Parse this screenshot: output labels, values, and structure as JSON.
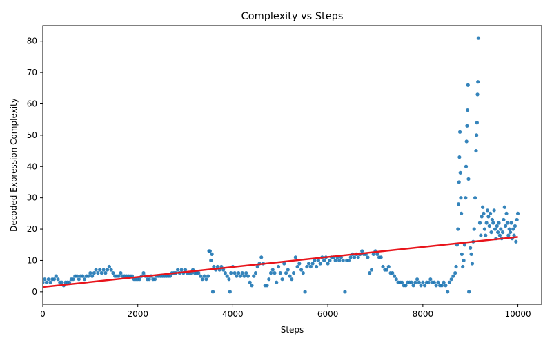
{
  "chart_data": {
    "type": "scatter",
    "title": "Complexity vs Steps",
    "xlabel": "Steps",
    "ylabel": "Decoded Expression Complexity",
    "xlim": [
      0,
      10500
    ],
    "ylim": [
      -4,
      85
    ],
    "xticks": [
      0,
      2000,
      4000,
      6000,
      8000,
      10000
    ],
    "yticks": [
      0,
      10,
      20,
      30,
      40,
      50,
      60,
      70,
      80
    ],
    "grid": false,
    "legend": "none",
    "colors": {
      "points": "#1f77b4",
      "trend": "#e8141b"
    },
    "trend_line": {
      "x": [
        0,
        10000
      ],
      "y": [
        1.5,
        17.5
      ]
    },
    "series": [
      {
        "values_xy": [
          [
            0,
            3
          ],
          [
            40,
            4
          ],
          [
            80,
            3
          ],
          [
            120,
            4
          ],
          [
            160,
            3
          ],
          [
            200,
            4
          ],
          [
            240,
            4
          ],
          [
            280,
            5
          ],
          [
            320,
            4
          ],
          [
            360,
            3
          ],
          [
            400,
            3
          ],
          [
            440,
            2
          ],
          [
            480,
            3
          ],
          [
            520,
            3
          ],
          [
            560,
            3
          ],
          [
            600,
            4
          ],
          [
            640,
            4
          ],
          [
            680,
            5
          ],
          [
            720,
            5
          ],
          [
            760,
            4
          ],
          [
            800,
            5
          ],
          [
            840,
            5
          ],
          [
            880,
            4
          ],
          [
            920,
            5
          ],
          [
            960,
            5
          ],
          [
            1000,
            6
          ],
          [
            1040,
            5
          ],
          [
            1080,
            6
          ],
          [
            1120,
            7
          ],
          [
            1160,
            6
          ],
          [
            1200,
            7
          ],
          [
            1240,
            6
          ],
          [
            1280,
            7
          ],
          [
            1320,
            6
          ],
          [
            1360,
            7
          ],
          [
            1400,
            8
          ],
          [
            1440,
            7
          ],
          [
            1480,
            6
          ],
          [
            1520,
            5
          ],
          [
            1560,
            5
          ],
          [
            1600,
            5
          ],
          [
            1640,
            6
          ],
          [
            1680,
            5
          ],
          [
            1720,
            5
          ],
          [
            1760,
            5
          ],
          [
            1800,
            5
          ],
          [
            1840,
            5
          ],
          [
            1880,
            5
          ],
          [
            1920,
            4
          ],
          [
            1960,
            4
          ],
          [
            2000,
            4
          ],
          [
            2040,
            4
          ],
          [
            2080,
            5
          ],
          [
            2120,
            6
          ],
          [
            2160,
            5
          ],
          [
            2200,
            4
          ],
          [
            2240,
            4
          ],
          [
            2280,
            5
          ],
          [
            2320,
            4
          ],
          [
            2360,
            4
          ],
          [
            2400,
            5
          ],
          [
            2440,
            5
          ],
          [
            2480,
            5
          ],
          [
            2520,
            5
          ],
          [
            2560,
            5
          ],
          [
            2600,
            5
          ],
          [
            2640,
            5
          ],
          [
            2680,
            5
          ],
          [
            2720,
            6
          ],
          [
            2760,
            6
          ],
          [
            2800,
            6
          ],
          [
            2840,
            7
          ],
          [
            2880,
            6
          ],
          [
            2920,
            7
          ],
          [
            2960,
            6
          ],
          [
            3000,
            7
          ],
          [
            3040,
            6
          ],
          [
            3080,
            6
          ],
          [
            3120,
            6
          ],
          [
            3160,
            7
          ],
          [
            3200,
            6
          ],
          [
            3240,
            6
          ],
          [
            3280,
            6
          ],
          [
            3320,
            5
          ],
          [
            3360,
            4
          ],
          [
            3400,
            5
          ],
          [
            3440,
            4
          ],
          [
            3480,
            5
          ],
          [
            3500,
            13
          ],
          [
            3520,
            13
          ],
          [
            3540,
            10
          ],
          [
            3560,
            12
          ],
          [
            3580,
            0
          ],
          [
            3600,
            8
          ],
          [
            3640,
            7
          ],
          [
            3680,
            8
          ],
          [
            3720,
            7
          ],
          [
            3760,
            8
          ],
          [
            3800,
            7
          ],
          [
            3840,
            6
          ],
          [
            3880,
            5
          ],
          [
            3920,
            4
          ],
          [
            3940,
            0
          ],
          [
            3960,
            6
          ],
          [
            4000,
            8
          ],
          [
            4040,
            6
          ],
          [
            4080,
            5
          ],
          [
            4120,
            6
          ],
          [
            4160,
            5
          ],
          [
            4200,
            6
          ],
          [
            4240,
            5
          ],
          [
            4280,
            6
          ],
          [
            4320,
            5
          ],
          [
            4360,
            3
          ],
          [
            4400,
            2
          ],
          [
            4440,
            5
          ],
          [
            4480,
            6
          ],
          [
            4520,
            8
          ],
          [
            4560,
            9
          ],
          [
            4600,
            11
          ],
          [
            4640,
            9
          ],
          [
            4680,
            2
          ],
          [
            4720,
            2
          ],
          [
            4760,
            4
          ],
          [
            4800,
            6
          ],
          [
            4840,
            7
          ],
          [
            4880,
            6
          ],
          [
            4920,
            3
          ],
          [
            4960,
            8
          ],
          [
            5000,
            6
          ],
          [
            5040,
            4
          ],
          [
            5080,
            9
          ],
          [
            5120,
            6
          ],
          [
            5160,
            7
          ],
          [
            5200,
            5
          ],
          [
            5240,
            4
          ],
          [
            5280,
            6
          ],
          [
            5320,
            11
          ],
          [
            5360,
            8
          ],
          [
            5400,
            9
          ],
          [
            5440,
            7
          ],
          [
            5480,
            6
          ],
          [
            5520,
            0
          ],
          [
            5560,
            8
          ],
          [
            5600,
            9
          ],
          [
            5640,
            8
          ],
          [
            5680,
            9
          ],
          [
            5720,
            10
          ],
          [
            5760,
            8
          ],
          [
            5800,
            10
          ],
          [
            5840,
            9
          ],
          [
            5880,
            11
          ],
          [
            5920,
            10
          ],
          [
            5960,
            11
          ],
          [
            6000,
            9
          ],
          [
            6040,
            10
          ],
          [
            6080,
            11
          ],
          [
            6120,
            11
          ],
          [
            6160,
            10
          ],
          [
            6200,
            11
          ],
          [
            6240,
            10
          ],
          [
            6280,
            11
          ],
          [
            6320,
            10
          ],
          [
            6360,
            0
          ],
          [
            6400,
            10
          ],
          [
            6440,
            10
          ],
          [
            6480,
            11
          ],
          [
            6520,
            12
          ],
          [
            6560,
            11
          ],
          [
            6600,
            12
          ],
          [
            6640,
            11
          ],
          [
            6680,
            12
          ],
          [
            6720,
            13
          ],
          [
            6760,
            12
          ],
          [
            6800,
            12
          ],
          [
            6840,
            11
          ],
          [
            6880,
            6
          ],
          [
            6920,
            7
          ],
          [
            6960,
            12
          ],
          [
            7000,
            13
          ],
          [
            7040,
            12
          ],
          [
            7080,
            11
          ],
          [
            7120,
            11
          ],
          [
            7160,
            8
          ],
          [
            7200,
            7
          ],
          [
            7240,
            7
          ],
          [
            7280,
            8
          ],
          [
            7320,
            6
          ],
          [
            7360,
            6
          ],
          [
            7400,
            5
          ],
          [
            7440,
            4
          ],
          [
            7480,
            3
          ],
          [
            7520,
            3
          ],
          [
            7560,
            3
          ],
          [
            7600,
            2
          ],
          [
            7640,
            2
          ],
          [
            7680,
            3
          ],
          [
            7720,
            3
          ],
          [
            7760,
            3
          ],
          [
            7800,
            2
          ],
          [
            7840,
            3
          ],
          [
            7880,
            4
          ],
          [
            7920,
            3
          ],
          [
            7960,
            2
          ],
          [
            8000,
            3
          ],
          [
            8040,
            2
          ],
          [
            8080,
            3
          ],
          [
            8120,
            3
          ],
          [
            8160,
            4
          ],
          [
            8200,
            3
          ],
          [
            8240,
            3
          ],
          [
            8280,
            2
          ],
          [
            8320,
            3
          ],
          [
            8360,
            2
          ],
          [
            8400,
            2
          ],
          [
            8440,
            3
          ],
          [
            8480,
            2
          ],
          [
            8520,
            0
          ],
          [
            8560,
            3
          ],
          [
            8600,
            4
          ],
          [
            8640,
            5
          ],
          [
            8680,
            6
          ],
          [
            8700,
            8
          ],
          [
            8720,
            15
          ],
          [
            8740,
            20
          ],
          [
            8750,
            28
          ],
          [
            8760,
            35
          ],
          [
            8770,
            43
          ],
          [
            8780,
            51
          ],
          [
            8790,
            38
          ],
          [
            8800,
            30
          ],
          [
            8810,
            25
          ],
          [
            8820,
            12
          ],
          [
            8840,
            8
          ],
          [
            8860,
            10
          ],
          [
            8880,
            15
          ],
          [
            8900,
            30
          ],
          [
            8910,
            40
          ],
          [
            8920,
            48
          ],
          [
            8930,
            53
          ],
          [
            8940,
            58
          ],
          [
            8950,
            66
          ],
          [
            8960,
            36
          ],
          [
            8970,
            0
          ],
          [
            9000,
            14
          ],
          [
            9020,
            12
          ],
          [
            9040,
            9
          ],
          [
            9060,
            16
          ],
          [
            9080,
            20
          ],
          [
            9100,
            30
          ],
          [
            9120,
            45
          ],
          [
            9130,
            50
          ],
          [
            9140,
            54
          ],
          [
            9150,
            63
          ],
          [
            9160,
            67
          ],
          [
            9170,
            81
          ],
          [
            9200,
            22
          ],
          [
            9220,
            18
          ],
          [
            9240,
            24
          ],
          [
            9260,
            27
          ],
          [
            9280,
            25
          ],
          [
            9300,
            20
          ],
          [
            9320,
            18
          ],
          [
            9340,
            22
          ],
          [
            9360,
            26
          ],
          [
            9380,
            24
          ],
          [
            9400,
            21
          ],
          [
            9420,
            25
          ],
          [
            9440,
            19
          ],
          [
            9460,
            23
          ],
          [
            9480,
            22
          ],
          [
            9500,
            26
          ],
          [
            9520,
            20
          ],
          [
            9540,
            17
          ],
          [
            9560,
            21
          ],
          [
            9580,
            19
          ],
          [
            9600,
            22
          ],
          [
            9620,
            18
          ],
          [
            9640,
            20
          ],
          [
            9660,
            17
          ],
          [
            9680,
            19
          ],
          [
            9700,
            23
          ],
          [
            9720,
            27
          ],
          [
            9740,
            21
          ],
          [
            9760,
            25
          ],
          [
            9780,
            22
          ],
          [
            9800,
            18
          ],
          [
            9820,
            20
          ],
          [
            9840,
            19
          ],
          [
            9860,
            22
          ],
          [
            9880,
            17
          ],
          [
            9900,
            20
          ],
          [
            9920,
            18
          ],
          [
            9940,
            21
          ],
          [
            9960,
            16
          ],
          [
            9980,
            23
          ],
          [
            10000,
            25
          ]
        ]
      }
    ]
  }
}
